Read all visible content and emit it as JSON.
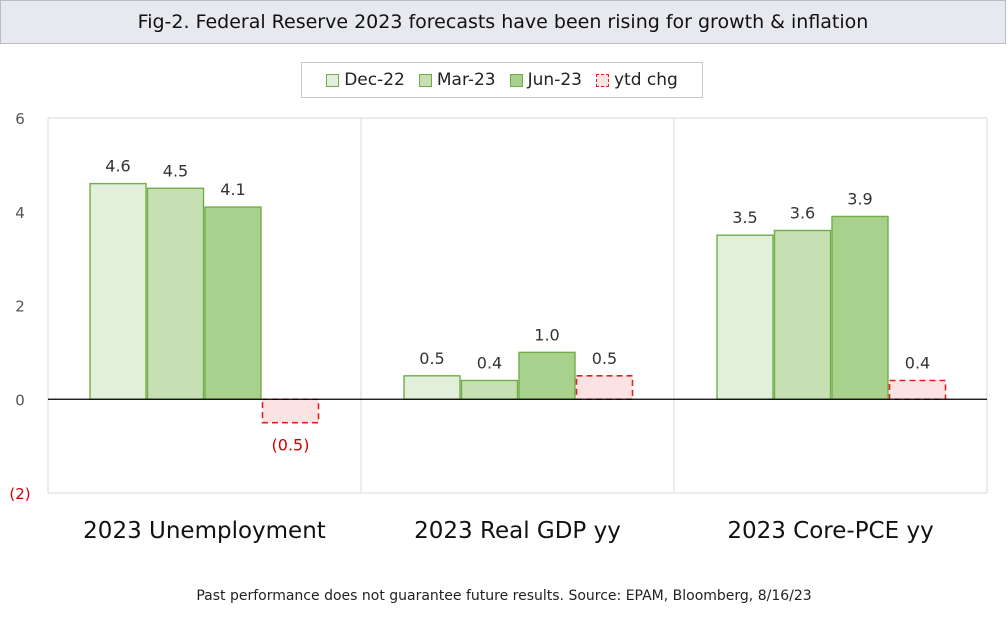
{
  "title": "Fig-2. Federal Reserve 2023 forecasts have been rising for growth & inflation",
  "footer": "Past performance does not guarantee future results.  Source: EPAM, Bloomberg, 8/16/23",
  "colors": {
    "dec22": "#e2efda",
    "mar23": "#c6e0b4",
    "jun23": "#a9d18e",
    "bar_border": "#70ad47",
    "ytd_fill": "#fde2e4",
    "ytd_border": "#e02020",
    "grid": "#d9d9d9",
    "axis": "#000000"
  },
  "chart_data": {
    "type": "bar",
    "categories": [
      "2023 Unemployment",
      "2023 Real GDP yy",
      "2023 Core-PCE yy"
    ],
    "series": [
      {
        "name": "Dec-22",
        "values": [
          4.6,
          0.5,
          3.5
        ],
        "labels": [
          "4.6",
          "0.5",
          "3.5"
        ]
      },
      {
        "name": "Mar-23",
        "values": [
          4.5,
          0.4,
          3.6
        ],
        "labels": [
          "4.5",
          "0.4",
          "3.6"
        ]
      },
      {
        "name": "Jun-23",
        "values": [
          4.1,
          1.0,
          3.9
        ],
        "labels": [
          "4.1",
          "1.0",
          "3.9"
        ]
      },
      {
        "name": "ytd chg",
        "values": [
          -0.5,
          0.5,
          0.4
        ],
        "labels": [
          "(0.5)",
          "0.5",
          "0.4"
        ]
      }
    ],
    "ylim": [
      -2,
      6
    ],
    "yticks": [
      6,
      4,
      2,
      0,
      -2
    ],
    "ytick_labels": [
      "6",
      "4",
      "2",
      "0",
      "(2)"
    ],
    "legend_position": "top-center",
    "grid": "vertical category separators"
  }
}
